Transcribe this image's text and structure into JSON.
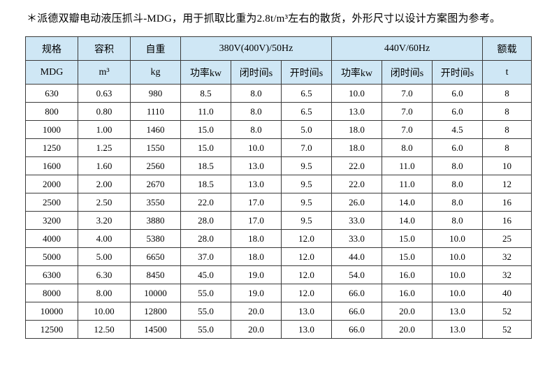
{
  "note": {
    "text": "＊派德双瓣电动液压抓斗-MDG，用于抓取比重为2.8t/m³左右的散货，外形尺寸以设计方案图为参考。"
  },
  "colors": {
    "header_bg": "#cfe7f5",
    "border": "#3a3a3a",
    "text": "#000000",
    "page_bg": "#ffffff"
  },
  "table": {
    "header_row1": [
      "规格",
      "容积",
      "自重",
      "380V(400V)/50Hz",
      "440V/60Hz",
      "额载"
    ],
    "header_row2": [
      "MDG",
      "m³",
      "kg",
      "功率kw",
      "闭时间s",
      "开时间s",
      "功率kw",
      "闭时间s",
      "开时间s",
      "t"
    ],
    "rows": [
      [
        "630",
        "0.63",
        "980",
        "8.5",
        "8.0",
        "6.5",
        "10.0",
        "7.0",
        "6.0",
        "8"
      ],
      [
        "800",
        "0.80",
        "1110",
        "11.0",
        "8.0",
        "6.5",
        "13.0",
        "7.0",
        "6.0",
        "8"
      ],
      [
        "1000",
        "1.00",
        "1460",
        "15.0",
        "8.0",
        "5.0",
        "18.0",
        "7.0",
        "4.5",
        "8"
      ],
      [
        "1250",
        "1.25",
        "1550",
        "15.0",
        "10.0",
        "7.0",
        "18.0",
        "8.0",
        "6.0",
        "8"
      ],
      [
        "1600",
        "1.60",
        "2560",
        "18.5",
        "13.0",
        "9.5",
        "22.0",
        "11.0",
        "8.0",
        "10"
      ],
      [
        "2000",
        "2.00",
        "2670",
        "18.5",
        "13.0",
        "9.5",
        "22.0",
        "11.0",
        "8.0",
        "12"
      ],
      [
        "2500",
        "2.50",
        "3550",
        "22.0",
        "17.0",
        "9.5",
        "26.0",
        "14.0",
        "8.0",
        "16"
      ],
      [
        "3200",
        "3.20",
        "3880",
        "28.0",
        "17.0",
        "9.5",
        "33.0",
        "14.0",
        "8.0",
        "16"
      ],
      [
        "4000",
        "4.00",
        "5380",
        "28.0",
        "18.0",
        "12.0",
        "33.0",
        "15.0",
        "10.0",
        "25"
      ],
      [
        "5000",
        "5.00",
        "6650",
        "37.0",
        "18.0",
        "12.0",
        "44.0",
        "15.0",
        "10.0",
        "32"
      ],
      [
        "6300",
        "6.30",
        "8450",
        "45.0",
        "19.0",
        "12.0",
        "54.0",
        "16.0",
        "10.0",
        "32"
      ],
      [
        "8000",
        "8.00",
        "10000",
        "55.0",
        "19.0",
        "12.0",
        "66.0",
        "16.0",
        "10.0",
        "40"
      ],
      [
        "10000",
        "10.00",
        "12800",
        "55.0",
        "20.0",
        "13.0",
        "66.0",
        "20.0",
        "13.0",
        "52"
      ],
      [
        "12500",
        "12.50",
        "14500",
        "55.0",
        "20.0",
        "13.0",
        "66.0",
        "20.0",
        "13.0",
        "52"
      ]
    ]
  }
}
